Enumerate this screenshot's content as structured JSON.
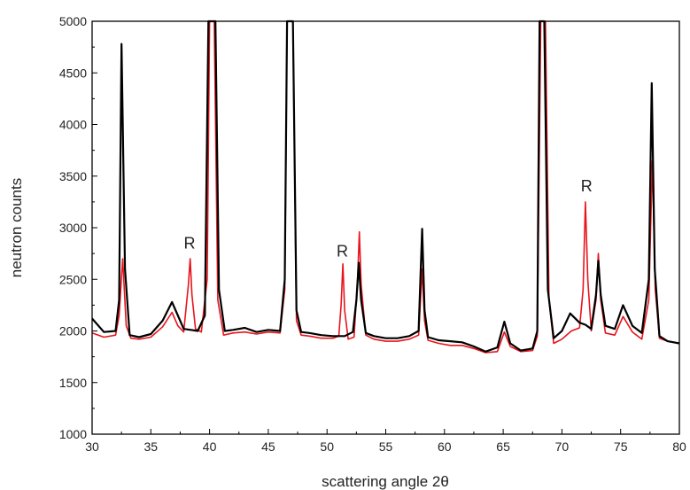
{
  "chart_data": {
    "type": "line",
    "title": "",
    "xlabel": "scattering angle 2θ",
    "ylabel": "neutron counts",
    "xlim": [
      30,
      80
    ],
    "ylim": [
      1000,
      5000
    ],
    "x_ticks": [
      30,
      35,
      40,
      45,
      50,
      55,
      60,
      65,
      70,
      75,
      80
    ],
    "x_tick_labels": [
      "30",
      "35",
      "40",
      "45",
      "50",
      "55",
      "60",
      "65",
      "70",
      "75",
      "80"
    ],
    "y_ticks": [
      1000,
      1500,
      2000,
      2500,
      3000,
      3500,
      4000,
      4500,
      5000
    ],
    "y_tick_labels": [
      "1000",
      "1500",
      "2000",
      "2500",
      "3000",
      "3500",
      "4000",
      "4500",
      "5000"
    ],
    "grid": false,
    "legend": "none",
    "series": [
      {
        "color": "#e8141c",
        "points": [
          [
            30,
            1980
          ],
          [
            31,
            1940
          ],
          [
            32,
            1960
          ],
          [
            32.3,
            2150
          ],
          [
            32.6,
            2700
          ],
          [
            32.9,
            2050
          ],
          [
            33.3,
            1930
          ],
          [
            34,
            1920
          ],
          [
            35,
            1940
          ],
          [
            36,
            2040
          ],
          [
            36.8,
            2180
          ],
          [
            37.3,
            2050
          ],
          [
            37.8,
            1990
          ],
          [
            38.2,
            2450
          ],
          [
            38.35,
            2700
          ],
          [
            38.5,
            2350
          ],
          [
            38.8,
            2020
          ],
          [
            39.3,
            1990
          ],
          [
            39.8,
            2500
          ],
          [
            40,
            5000
          ],
          [
            40.4,
            5000
          ],
          [
            40.7,
            2300
          ],
          [
            41.2,
            1960
          ],
          [
            42,
            1980
          ],
          [
            43,
            1990
          ],
          [
            44,
            1970
          ],
          [
            45,
            1990
          ],
          [
            46,
            1980
          ],
          [
            46.4,
            2400
          ],
          [
            46.6,
            5000
          ],
          [
            47.1,
            5000
          ],
          [
            47.4,
            2100
          ],
          [
            47.8,
            1960
          ],
          [
            48.5,
            1950
          ],
          [
            49.5,
            1930
          ],
          [
            50.5,
            1930
          ],
          [
            51,
            1950
          ],
          [
            51.2,
            2250
          ],
          [
            51.35,
            2650
          ],
          [
            51.5,
            2200
          ],
          [
            51.8,
            1920
          ],
          [
            52.3,
            1940
          ],
          [
            52.6,
            2500
          ],
          [
            52.75,
            2960
          ],
          [
            52.9,
            2450
          ],
          [
            53.3,
            1960
          ],
          [
            54,
            1920
          ],
          [
            55,
            1900
          ],
          [
            56,
            1900
          ],
          [
            57,
            1920
          ],
          [
            57.8,
            1960
          ],
          [
            58.1,
            2600
          ],
          [
            58.3,
            2100
          ],
          [
            58.6,
            1910
          ],
          [
            59.5,
            1880
          ],
          [
            60.5,
            1860
          ],
          [
            61.5,
            1860
          ],
          [
            62.5,
            1830
          ],
          [
            63.5,
            1790
          ],
          [
            64.5,
            1800
          ],
          [
            65.1,
            1990
          ],
          [
            65.6,
            1850
          ],
          [
            66.5,
            1800
          ],
          [
            67.5,
            1810
          ],
          [
            67.9,
            1950
          ],
          [
            68.2,
            5000
          ],
          [
            68.6,
            5000
          ],
          [
            68.9,
            2300
          ],
          [
            69.3,
            1880
          ],
          [
            70,
            1920
          ],
          [
            70.8,
            2000
          ],
          [
            71.5,
            2030
          ],
          [
            71.8,
            2400
          ],
          [
            72,
            3250
          ],
          [
            72.2,
            2500
          ],
          [
            72.5,
            2000
          ],
          [
            72.9,
            2300
          ],
          [
            73.1,
            2750
          ],
          [
            73.3,
            2300
          ],
          [
            73.7,
            1980
          ],
          [
            74.5,
            1960
          ],
          [
            75.2,
            2140
          ],
          [
            76,
            1990
          ],
          [
            76.8,
            1920
          ],
          [
            77.4,
            2300
          ],
          [
            77.7,
            3650
          ],
          [
            77.95,
            2400
          ],
          [
            78.3,
            1930
          ],
          [
            79,
            1900
          ],
          [
            80,
            1880
          ]
        ]
      },
      {
        "color": "#000000",
        "points": [
          [
            30,
            2120
          ],
          [
            31,
            1990
          ],
          [
            32,
            2000
          ],
          [
            32.3,
            2300
          ],
          [
            32.5,
            4780
          ],
          [
            32.8,
            2600
          ],
          [
            33.2,
            1960
          ],
          [
            34,
            1940
          ],
          [
            35,
            1970
          ],
          [
            36,
            2100
          ],
          [
            36.8,
            2280
          ],
          [
            37.3,
            2150
          ],
          [
            37.8,
            2020
          ],
          [
            38.4,
            2010
          ],
          [
            39,
            2000
          ],
          [
            39.6,
            2150
          ],
          [
            39.9,
            5000
          ],
          [
            40.5,
            5000
          ],
          [
            40.8,
            2400
          ],
          [
            41.3,
            2000
          ],
          [
            42,
            2010
          ],
          [
            43,
            2030
          ],
          [
            44,
            1990
          ],
          [
            45,
            2010
          ],
          [
            46,
            2000
          ],
          [
            46.4,
            2500
          ],
          [
            46.6,
            5000
          ],
          [
            47.1,
            5000
          ],
          [
            47.4,
            2200
          ],
          [
            47.8,
            1990
          ],
          [
            48.5,
            1980
          ],
          [
            49.5,
            1960
          ],
          [
            50.5,
            1950
          ],
          [
            51.5,
            1950
          ],
          [
            52.2,
            1990
          ],
          [
            52.5,
            2300
          ],
          [
            52.7,
            2660
          ],
          [
            52.9,
            2300
          ],
          [
            53.3,
            1980
          ],
          [
            54,
            1950
          ],
          [
            55,
            1930
          ],
          [
            56,
            1930
          ],
          [
            57,
            1950
          ],
          [
            57.8,
            2000
          ],
          [
            58.1,
            2990
          ],
          [
            58.3,
            2200
          ],
          [
            58.6,
            1940
          ],
          [
            59.5,
            1910
          ],
          [
            60.5,
            1900
          ],
          [
            61.5,
            1890
          ],
          [
            62.5,
            1850
          ],
          [
            63.5,
            1800
          ],
          [
            64.5,
            1840
          ],
          [
            65.1,
            2090
          ],
          [
            65.6,
            1880
          ],
          [
            66.5,
            1810
          ],
          [
            67.5,
            1830
          ],
          [
            67.9,
            2000
          ],
          [
            68.1,
            5000
          ],
          [
            68.5,
            5000
          ],
          [
            68.8,
            2400
          ],
          [
            69.3,
            1930
          ],
          [
            70,
            2000
          ],
          [
            70.7,
            2170
          ],
          [
            71.5,
            2080
          ],
          [
            72,
            2060
          ],
          [
            72.5,
            2020
          ],
          [
            72.9,
            2350
          ],
          [
            73.1,
            2680
          ],
          [
            73.3,
            2350
          ],
          [
            73.7,
            2050
          ],
          [
            74.5,
            2020
          ],
          [
            75.2,
            2250
          ],
          [
            76,
            2050
          ],
          [
            76.8,
            1980
          ],
          [
            77.4,
            2500
          ],
          [
            77.65,
            4400
          ],
          [
            77.9,
            2600
          ],
          [
            78.3,
            1950
          ],
          [
            79,
            1900
          ],
          [
            80,
            1880
          ]
        ]
      }
    ],
    "annotations": [
      {
        "text": "R",
        "x": 38.3,
        "y": 2800
      },
      {
        "text": "R",
        "x": 51.3,
        "y": 2720
      },
      {
        "text": "R",
        "x": 72.1,
        "y": 3350
      }
    ]
  }
}
